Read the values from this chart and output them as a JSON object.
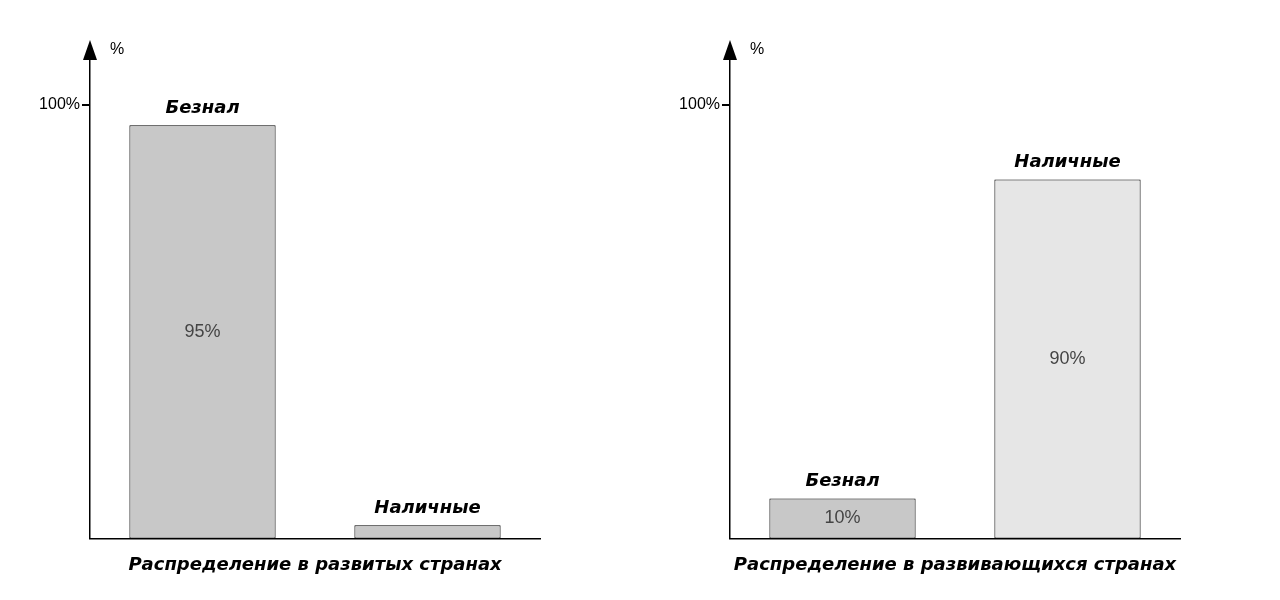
{
  "chart_data": [
    {
      "type": "bar",
      "xlabel": "Распределение в развитых странах",
      "ylabel": "%",
      "annotations": [
        "100%"
      ],
      "categories": [
        "Безнал",
        "Наличные"
      ],
      "values": [
        95,
        3
      ],
      "colors": [
        "#c8c8c8",
        "#c8c8c8"
      ],
      "value_labels": [
        "95%",
        null
      ],
      "ylim": [
        0,
        110
      ],
      "legend": false
    },
    {
      "type": "bar",
      "xlabel": "Распределение в развивающихся странах",
      "ylabel": "%",
      "annotations": [
        "100%"
      ],
      "categories": [
        "Безнал",
        "Наличные"
      ],
      "values": [
        10,
        90
      ],
      "colors": [
        "#c8c8c8",
        "#e6e6e6"
      ],
      "value_labels": [
        "10%",
        "90%"
      ],
      "ylim": [
        0,
        120
      ],
      "legend": false
    }
  ]
}
